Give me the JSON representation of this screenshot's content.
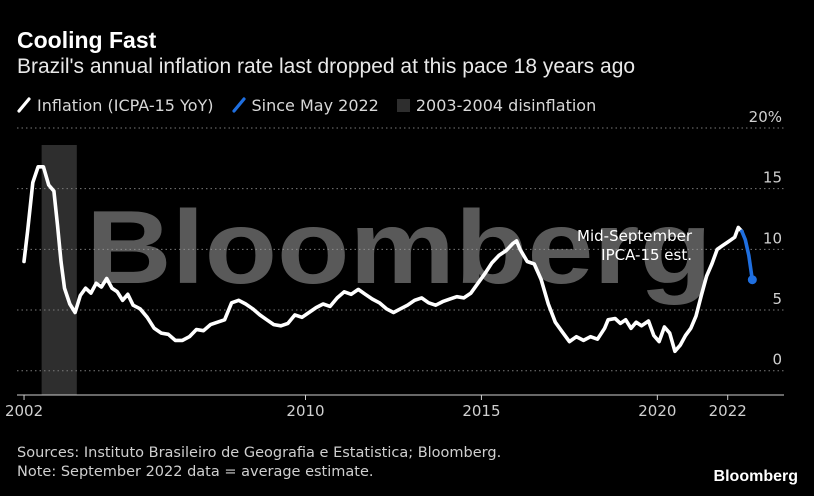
{
  "chart_data": {
    "type": "line",
    "title": "Cooling Fast",
    "subtitle": "Brazil's annual inflation rate last dropped at this pace 18 years ago",
    "legend": [
      {
        "label": "Inflation (ICPA-15 YoY)",
        "color": "#ffffff",
        "kind": "line"
      },
      {
        "label": "Since May 2022",
        "color": "#1f6fe0",
        "kind": "line"
      },
      {
        "label": "2003-2004 disinflation",
        "color": "#2e2e2e",
        "kind": "box"
      }
    ],
    "xlim": [
      2001.8,
      2023.6
    ],
    "ylim": [
      -2,
      20
    ],
    "y_ticks": [
      0,
      5,
      10,
      15,
      20
    ],
    "y_tick_labels": [
      "0",
      "5",
      "10",
      "15",
      "20%"
    ],
    "x_ticks": [
      2002,
      2010,
      2015,
      2020,
      2022
    ],
    "x_tick_labels": [
      "2002",
      "2010",
      "2015",
      "2020",
      "2022"
    ],
    "shaded_range": [
      2002.5,
      2003.5
    ],
    "watermark": "Bloomberg",
    "annotation": [
      "Mid-September",
      "IPCA-15 est."
    ],
    "series": [
      {
        "name": "Inflation (ICPA-15 YoY)",
        "color": "#ffffff",
        "x": [
          2002.0,
          2002.1,
          2002.25,
          2002.4,
          2002.55,
          2002.7,
          2002.85,
          2002.95,
          2003.05,
          2003.15,
          2003.3,
          2003.45,
          2003.6,
          2003.75,
          2003.9,
          2004.05,
          2004.2,
          2004.35,
          2004.5,
          2004.65,
          2004.8,
          2004.95,
          2005.1,
          2005.3,
          2005.5,
          2005.7,
          2005.9,
          2006.1,
          2006.3,
          2006.5,
          2006.7,
          2006.9,
          2007.1,
          2007.3,
          2007.5,
          2007.7,
          2007.9,
          2008.1,
          2008.3,
          2008.5,
          2008.7,
          2008.9,
          2009.1,
          2009.3,
          2009.5,
          2009.7,
          2009.9,
          2010.1,
          2010.3,
          2010.5,
          2010.7,
          2010.9,
          2011.1,
          2011.3,
          2011.5,
          2011.7,
          2011.9,
          2012.1,
          2012.3,
          2012.5,
          2012.7,
          2012.9,
          2013.1,
          2013.3,
          2013.5,
          2013.7,
          2013.9,
          2014.1,
          2014.3,
          2014.5,
          2014.7,
          2014.9,
          2015.1,
          2015.3,
          2015.5,
          2015.7,
          2015.9,
          2016.0,
          2016.1,
          2016.3,
          2016.5,
          2016.7,
          2016.9,
          2017.1,
          2017.3,
          2017.5,
          2017.7,
          2017.9,
          2018.1,
          2018.3,
          2018.5,
          2018.6,
          2018.8,
          2018.95,
          2019.1,
          2019.25,
          2019.4,
          2019.55,
          2019.75,
          2019.9,
          2020.05,
          2020.2,
          2020.35,
          2020.5,
          2020.65,
          2020.8,
          2020.95,
          2021.1,
          2021.25,
          2021.4,
          2021.55,
          2021.7,
          2021.85,
          2022.0,
          2022.1,
          2022.2,
          2022.3,
          2022.4
        ],
        "y": [
          9.0,
          11.5,
          15.5,
          16.8,
          16.8,
          15.3,
          14.8,
          12.0,
          9.0,
          6.8,
          5.5,
          4.8,
          6.2,
          6.8,
          6.4,
          7.2,
          6.9,
          7.6,
          6.8,
          6.5,
          5.8,
          6.3,
          5.4,
          5.1,
          4.4,
          3.5,
          3.1,
          3.0,
          2.5,
          2.5,
          2.8,
          3.4,
          3.3,
          3.8,
          4.0,
          4.2,
          5.6,
          5.8,
          5.5,
          5.1,
          4.6,
          4.2,
          3.8,
          3.7,
          3.9,
          4.6,
          4.4,
          4.8,
          5.2,
          5.5,
          5.3,
          6.0,
          6.5,
          6.3,
          6.7,
          6.3,
          5.9,
          5.6,
          5.1,
          4.8,
          5.1,
          5.4,
          5.8,
          6.0,
          5.6,
          5.4,
          5.7,
          5.9,
          6.1,
          6.0,
          6.4,
          7.2,
          8.0,
          8.9,
          9.5,
          9.9,
          10.5,
          10.7,
          10.0,
          9.0,
          8.8,
          7.5,
          5.5,
          4.0,
          3.2,
          2.4,
          2.8,
          2.5,
          2.8,
          2.6,
          3.5,
          4.2,
          4.3,
          3.9,
          4.2,
          3.5,
          4.0,
          3.7,
          4.1,
          2.9,
          2.4,
          3.6,
          3.1,
          1.6,
          2.1,
          2.9,
          3.5,
          4.5,
          6.2,
          7.8,
          8.8,
          10.0,
          10.3,
          10.6,
          10.8,
          11.0,
          11.8,
          11.5
        ]
      },
      {
        "name": "Since May 2022",
        "color": "#1f6fe0",
        "x": [
          2022.4,
          2022.5,
          2022.6,
          2022.7
        ],
        "y": [
          11.5,
          10.8,
          9.5,
          7.5
        ]
      }
    ]
  },
  "sources": "Sources: Instituto Brasileiro de Geografia e Estatistica; Bloomberg.",
  "note": "Note: September 2022 data = average estimate.",
  "brand": "Bloomberg"
}
